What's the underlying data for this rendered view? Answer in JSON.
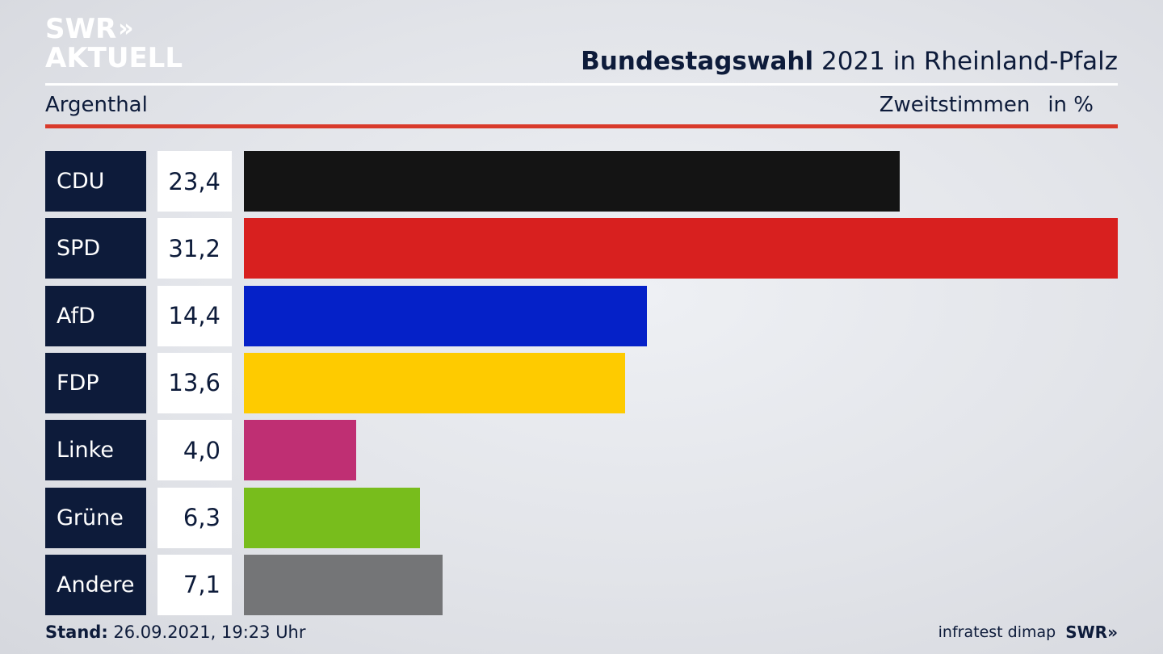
{
  "header": {
    "logo_line1": "SWR",
    "logo_chevrons": "»",
    "logo_line2": "AKTUELL",
    "title_bold": "Bundestagswahl",
    "title_rest": "2021 in Rheinland-Pfalz",
    "region": "Argenthal",
    "vote_type": "Zweitstimmen",
    "unit": "in %"
  },
  "chart_data": {
    "type": "bar",
    "orientation": "horizontal",
    "title": "Bundestagswahl 2021 in Rheinland-Pfalz",
    "categories": [
      "CDU",
      "SPD",
      "AfD",
      "FDP",
      "Linke",
      "Grüne",
      "Andere"
    ],
    "values": [
      23.4,
      31.2,
      14.4,
      13.6,
      4.0,
      6.3,
      7.1
    ],
    "value_labels": [
      "23,4",
      "31,2",
      "14,4",
      "13,6",
      "4,0",
      "6,3",
      "7,1"
    ],
    "colors": [
      "#141414",
      "#d8201f",
      "#0521c8",
      "#fecb00",
      "#bf2f73",
      "#78bd1c",
      "#747577"
    ],
    "xlim": [
      0,
      31.2
    ],
    "grid": false,
    "legend": "none"
  },
  "footer": {
    "stand_label": "Stand:",
    "stand_value": "26.09.2021, 19:23 Uhr",
    "source": "infratest dimap",
    "source_logo": "SWR»"
  }
}
